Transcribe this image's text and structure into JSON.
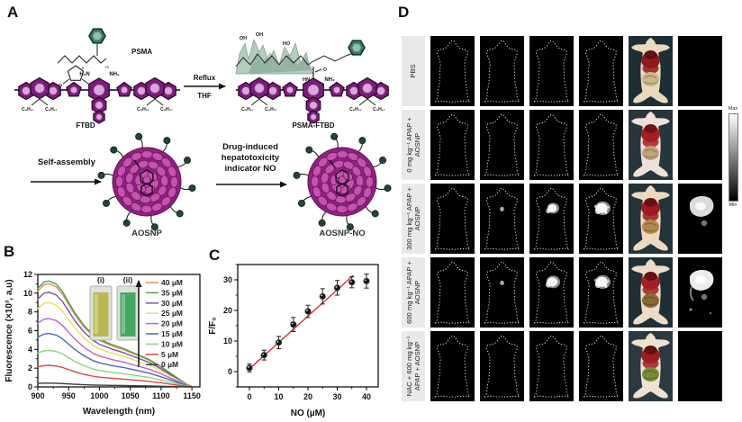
{
  "panels": {
    "a": "A",
    "b": "B",
    "c": "C",
    "d": "D"
  },
  "panel_a": {
    "psma_label": "PSMA",
    "ftbd_label": "FTBD",
    "psma_ftbd_label": "PSMA-FTBD",
    "reflux": "Reflux",
    "thf": "THF",
    "self_assembly": "Self-assembly",
    "drug_arrow_lines": [
      "Drug-induced",
      "hepatotoxicity",
      "indicator NO"
    ],
    "aosnp_label": "AOSNP",
    "aosnp_no_label": "AOSNP-NO",
    "chem": {
      "h2n": "H₂N",
      "nh2": "NH₂",
      "c8h17": "C₈H₁₇",
      "oh": "OH",
      "ho": "HO",
      "hn": "HN",
      "o": "O",
      "n": "n",
      "m": "m"
    },
    "colors": {
      "polymer_purple": "#7a1d7a",
      "polymer_inner": "#dba6db",
      "benzene_green": "#3c7b6b",
      "dot_green": "#24443a",
      "np_body": "#8f2280",
      "np_bump": "#c453ae"
    }
  },
  "chart_data": [
    {
      "type": "line",
      "title": "",
      "xlabel": "Wavelength (nm)",
      "ylabel": "Fluorescence (×10³, a,u)",
      "xlim": [
        900,
        1163
      ],
      "ylim": [
        0,
        12
      ],
      "xticks": [
        900,
        950,
        1000,
        1050,
        1100,
        1150
      ],
      "yticks": [
        0,
        2,
        4,
        6,
        8,
        10,
        12
      ],
      "legend_position": "inside-right",
      "x": [
        900,
        910,
        918,
        930,
        940,
        950,
        960,
        975,
        990,
        1000,
        1020,
        1040,
        1060,
        1080,
        1100,
        1120,
        1140,
        1150
      ],
      "series": [
        {
          "name": "40 µM",
          "color": "#dd9055",
          "values": [
            10.23,
            10.89,
            11.0,
            10.67,
            9.9,
            8.8,
            7.7,
            6.38,
            5.39,
            4.95,
            4.4,
            3.96,
            3.41,
            2.86,
            2.09,
            1.21,
            0.33,
            0.05
          ]
        },
        {
          "name": "35 µM",
          "color": "#4f9f4f",
          "values": [
            10.51,
            11.19,
            11.3,
            10.96,
            10.17,
            9.04,
            7.91,
            6.55,
            5.54,
            5.09,
            4.52,
            4.07,
            3.5,
            2.94,
            2.15,
            1.24,
            0.34,
            0.05
          ]
        },
        {
          "name": "30 µM",
          "color": "#7452a8",
          "values": [
            9.39,
            10.0,
            10.1,
            9.8,
            9.09,
            8.08,
            7.07,
            5.86,
            4.95,
            4.55,
            4.04,
            3.64,
            3.13,
            2.63,
            1.92,
            1.11,
            0.3,
            0.04
          ]
        },
        {
          "name": "25 µM",
          "color": "#e6e05e",
          "values": [
            8.37,
            8.91,
            9.0,
            8.73,
            8.1,
            7.2,
            6.3,
            5.22,
            4.41,
            4.05,
            3.6,
            3.24,
            2.79,
            2.34,
            1.71,
            0.99,
            0.27,
            0.04
          ]
        },
        {
          "name": "20 µM",
          "color": "#bf62c6",
          "values": [
            6.79,
            7.23,
            7.3,
            7.08,
            6.57,
            5.84,
            5.11,
            4.23,
            3.58,
            3.29,
            2.92,
            2.63,
            2.26,
            1.9,
            1.39,
            0.8,
            0.22,
            0.03
          ]
        },
        {
          "name": "15 µM",
          "color": "#4f63bd",
          "values": [
            5.3,
            5.64,
            5.7,
            5.53,
            5.13,
            4.56,
            3.99,
            3.31,
            2.79,
            2.57,
            2.28,
            2.05,
            1.77,
            1.48,
            1.08,
            0.63,
            0.17,
            0.03
          ]
        },
        {
          "name": "10 µM",
          "color": "#8ed07e",
          "values": [
            3.63,
            3.86,
            3.9,
            3.78,
            3.51,
            3.12,
            2.73,
            2.26,
            1.91,
            1.76,
            1.56,
            1.4,
            1.21,
            1.01,
            0.74,
            0.43,
            0.12,
            0.02
          ]
        },
        {
          "name": "5 µM",
          "color": "#e04545",
          "values": [
            2.14,
            2.28,
            2.3,
            2.23,
            2.07,
            1.84,
            1.61,
            1.33,
            1.13,
            1.04,
            0.92,
            0.83,
            0.71,
            0.6,
            0.44,
            0.25,
            0.07,
            0.01
          ]
        },
        {
          "name": "0 µM",
          "color": "#3a3a3a",
          "values": [
            0.37,
            0.4,
            0.4,
            0.39,
            0.36,
            0.32,
            0.28,
            0.23,
            0.2,
            0.18,
            0.16,
            0.14,
            0.12,
            0.1,
            0.07,
            0.04,
            0.01,
            0.0
          ]
        }
      ],
      "inset": {
        "labels": [
          "(i)",
          "(ii)"
        ],
        "cuvette_colors": [
          "#b5b23f",
          "#2f9e4f"
        ]
      }
    },
    {
      "type": "scatter",
      "title": "",
      "xlabel": "NO (µM)",
      "ylabel": "F/F₀",
      "xlim": [
        -4,
        44
      ],
      "ylim": [
        -5,
        35
      ],
      "xticks": [
        0,
        10,
        20,
        30,
        40
      ],
      "yticks": [
        0,
        10,
        20,
        30
      ],
      "x": [
        0,
        5,
        10,
        15,
        20,
        25,
        30,
        35,
        40
      ],
      "y": [
        1.2,
        5.4,
        9.5,
        15.4,
        19.7,
        24.6,
        27.4,
        29.2,
        29.6
      ],
      "yerr": [
        1.3,
        1.6,
        2.0,
        2.3,
        2.0,
        2.5,
        2.4,
        1.8,
        2.3
      ],
      "fit_line": {
        "x1": 0,
        "y1": 0.9,
        "x2": 35.5,
        "y2": 31.5,
        "color": "#d8303c"
      },
      "marker_color": "#141414"
    }
  ],
  "panel_d": {
    "rows": [
      {
        "label": "PBS",
        "nir_signal": [
          0,
          0,
          0,
          0
        ],
        "exvivo_signal": 0
      },
      {
        "label": "0 mg kg⁻¹ APAP + AOSNP",
        "nir_signal": [
          0,
          0,
          0,
          0
        ],
        "exvivo_signal": 0
      },
      {
        "label": "300 mg kg⁻¹ APAP + AOSNP",
        "nir_signal": [
          0,
          0.2,
          0.65,
          1.0
        ],
        "exvivo_signal": 0.85
      },
      {
        "label": "600 mg kg⁻¹ APAP + AOSNP",
        "nir_signal": [
          0,
          0.35,
          0.85,
          1.0
        ],
        "exvivo_signal": 1.0
      },
      {
        "label": "NAC + 600 mg kg⁻¹ APAP + AOSNP",
        "nir_signal": [
          0,
          0,
          0,
          0
        ],
        "exvivo_signal": 0
      }
    ],
    "nir_columns": 4,
    "colorbar": {
      "max": "Max",
      "min": "Min"
    }
  }
}
